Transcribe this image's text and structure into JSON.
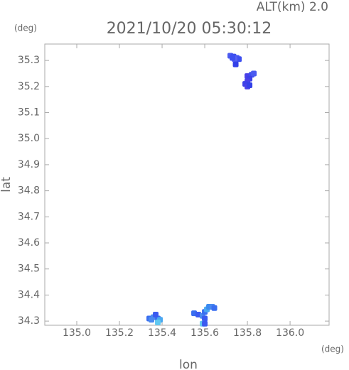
{
  "chart_data": {
    "type": "scatter",
    "title": "2021/10/20 05:30:12",
    "subtitle": "ALT(km) 2.0",
    "y_unit": "(deg)",
    "x_unit": "(deg)",
    "x_label": "lon",
    "y_label": "lat",
    "xlim": [
      134.85,
      136.183
    ],
    "ylim": [
      34.284,
      35.363
    ],
    "xticks": [
      {
        "value": 135,
        "label": "135.0"
      },
      135.2,
      135.4,
      135.6,
      135.8,
      {
        "value": 136,
        "label": "136.0"
      }
    ],
    "yticks": [
      34.3,
      34.4,
      34.5,
      34.6,
      34.7,
      34.8,
      34.9,
      {
        "value": 35,
        "label": "35.0"
      },
      35.1,
      35.2,
      35.3
    ],
    "x": [
      135.72,
      135.735,
      135.75,
      135.76,
      135.74,
      135.73,
      135.745,
      135.8,
      135.82,
      135.83,
      135.81,
      135.8,
      135.79,
      135.8,
      135.81,
      135.34,
      135.36,
      135.38,
      135.39,
      135.37,
      135.35,
      135.38,
      135.55,
      135.57,
      135.59,
      135.6,
      135.61,
      135.62,
      135.635,
      135.645,
      135.6,
      135.59,
      135.6
    ],
    "y": [
      35.318,
      35.315,
      35.31,
      35.305,
      35.305,
      35.31,
      35.285,
      35.24,
      35.245,
      35.25,
      35.23,
      35.22,
      35.21,
      35.2,
      35.205,
      34.31,
      34.315,
      34.31,
      34.305,
      34.325,
      34.305,
      34.295,
      34.33,
      34.325,
      34.32,
      34.335,
      34.345,
      34.355,
      34.355,
      34.35,
      34.31,
      34.29,
      34.29
    ],
    "colors": [
      "#4a5af0",
      "#3d4ff0",
      "#4a5af0",
      "#3d4ff0",
      "#5560f2",
      "#3d4ff0",
      "#3340e8",
      "#4a40e8",
      "#3d4ff0",
      "#4a5af0",
      "#3d40e8",
      "#4a40e8",
      "#3d40e8",
      "#4a40e8",
      "#3340e8",
      "#3a6ef0",
      "#4a8af0",
      "#3a6ef0",
      "#4aa8f0",
      "#3a5af0",
      "#4a8af0",
      "#60c8f0",
      "#3a6ef0",
      "#3a5af0",
      "#4a8af0",
      "#3a6ef0",
      "#4aa8f0",
      "#3a8af0",
      "#4a8af0",
      "#3a6ef0",
      "#3a5af0",
      "#60c8f0",
      "#3a5af0"
    ]
  }
}
